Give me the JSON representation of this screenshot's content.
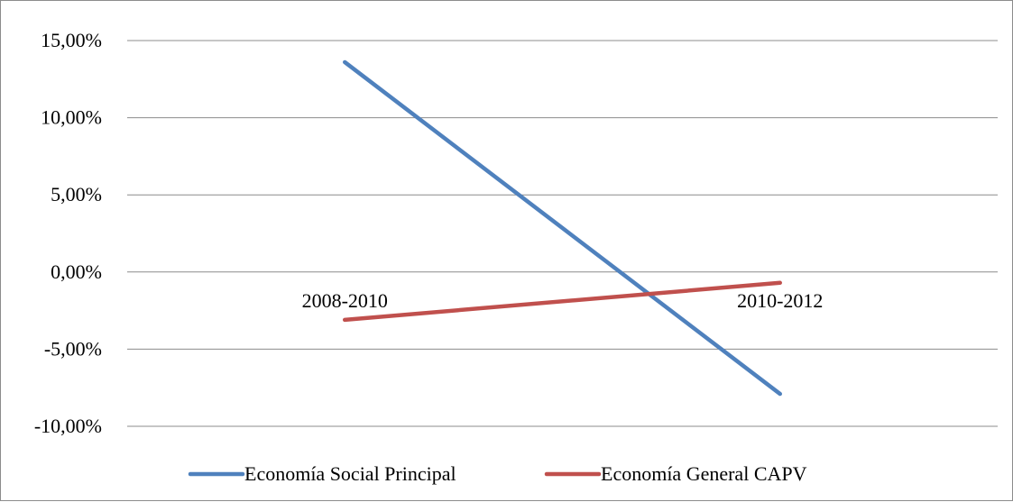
{
  "chart_data": {
    "type": "line",
    "categories": [
      "2008-2010",
      "2010-2012"
    ],
    "series": [
      {
        "name": "Economía Social Principal",
        "color": "#4f81bd",
        "values": [
          0.136,
          -0.079
        ]
      },
      {
        "name": "Economía General CAPV",
        "color": "#c0504d",
        "values": [
          -0.031,
          -0.007
        ]
      }
    ],
    "ylim": [
      -0.1,
      0.15
    ],
    "yticks": [
      "15,00%",
      "10,00%",
      "5,00%",
      "0,00%",
      "-5,00%",
      "-10,00%"
    ],
    "ytick_values": [
      0.15,
      0.1,
      0.05,
      0.0,
      -0.05,
      -0.1
    ],
    "grid": true,
    "legend_position": "bottom"
  }
}
